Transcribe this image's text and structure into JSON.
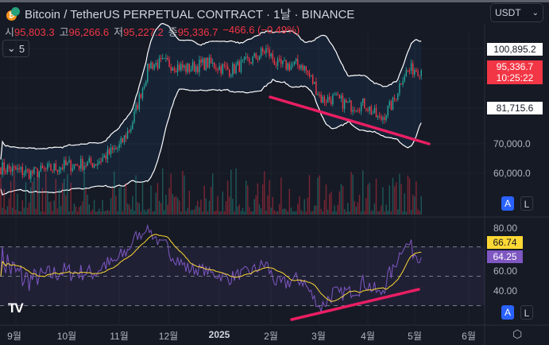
{
  "header": {
    "title": "Bitcoin / TetherUS PERPETUAL CONTRACT · 1날 · BINANCE",
    "ohlc": [
      {
        "key": "시",
        "value": "95,803.3"
      },
      {
        "key": "고",
        "value": "96,266.6"
      },
      {
        "key": "저",
        "value": "95,227.2"
      },
      {
        "key": "종",
        "value": "95,336.7"
      }
    ],
    "change": "−466.6 (−0.49%)",
    "indicators_count": "5"
  },
  "currency": "USDT",
  "price_axis": {
    "ticks": [
      "70,000.0",
      "60,000.0"
    ],
    "upper_band_label": "100,895.2",
    "last_price": "95,336.7",
    "countdown": "10:25:22",
    "lower_band_label": "81,715.6"
  },
  "rsi_axis": {
    "ticks": [
      "80.00",
      "60.00",
      "40.00"
    ],
    "ma_value": "66.74",
    "rsi_value": "64.25"
  },
  "buttons": {
    "auto": "A",
    "log": "L"
  },
  "time_axis": [
    "9월",
    "10월",
    "11월",
    "12월",
    "2025",
    "2월",
    "3월",
    "4월",
    "5월",
    "6월"
  ],
  "colors": {
    "up": "#26a69a",
    "down": "#f23645",
    "trend": "#e91e63",
    "rsi": "#7e57c2",
    "rsi_ma": "#fdd835",
    "accent": "#2962ff"
  },
  "price_path": [
    [
      0,
      62000
    ],
    [
      40,
      60000
    ],
    [
      80,
      62500
    ],
    [
      120,
      63500
    ],
    [
      150,
      69000
    ],
    [
      165,
      76000
    ],
    [
      178,
      88000
    ],
    [
      188,
      97000
    ],
    [
      210,
      97500
    ],
    [
      235,
      95500
    ],
    [
      260,
      97500
    ],
    [
      290,
      95000
    ],
    [
      320,
      99000
    ],
    [
      335,
      102000
    ],
    [
      350,
      96500
    ],
    [
      380,
      97000
    ],
    [
      392,
      92000
    ],
    [
      405,
      85000
    ],
    [
      420,
      85500
    ],
    [
      440,
      83000
    ],
    [
      460,
      83500
    ],
    [
      478,
      78000
    ],
    [
      495,
      84000
    ],
    [
      508,
      94000
    ],
    [
      520,
      95500
    ],
    [
      533,
      95300
    ]
  ]
}
